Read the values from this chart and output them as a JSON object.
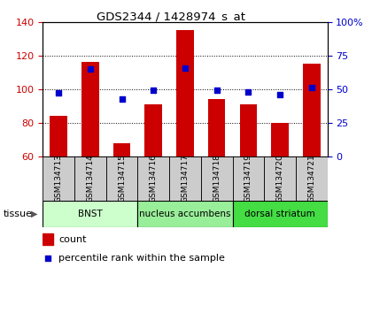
{
  "title": "GDS2344 / 1428974_s_at",
  "samples": [
    "GSM134713",
    "GSM134714",
    "GSM134715",
    "GSM134716",
    "GSM134717",
    "GSM134718",
    "GSM134719",
    "GSM134720",
    "GSM134721"
  ],
  "counts": [
    84,
    116,
    68,
    91,
    135,
    94,
    91,
    80,
    115
  ],
  "percentiles": [
    47,
    65,
    43,
    49,
    66,
    49,
    48,
    46,
    51
  ],
  "ylim_left": [
    60,
    140
  ],
  "ylim_right": [
    0,
    100
  ],
  "yticks_left": [
    60,
    80,
    100,
    120,
    140
  ],
  "yticks_right": [
    0,
    25,
    50,
    75,
    100
  ],
  "yticklabels_right": [
    "0",
    "25",
    "50",
    "75",
    "100%"
  ],
  "bar_color": "#cc0000",
  "dot_color": "#0000cc",
  "bar_bottom": 0,
  "tissue_groups": [
    {
      "label": "BNST",
      "start": 0,
      "end": 3,
      "color": "#ccffcc"
    },
    {
      "label": "nucleus accumbens",
      "start": 3,
      "end": 6,
      "color": "#99ee99"
    },
    {
      "label": "dorsal striatum",
      "start": 6,
      "end": 9,
      "color": "#44dd44"
    }
  ],
  "tick_label_color_left": "#cc0000",
  "tick_label_color_right": "#0000cc",
  "tissue_row_label": "tissue",
  "legend_count_label": "count",
  "legend_pct_label": "percentile rank within the sample",
  "sample_box_color": "#cccccc"
}
